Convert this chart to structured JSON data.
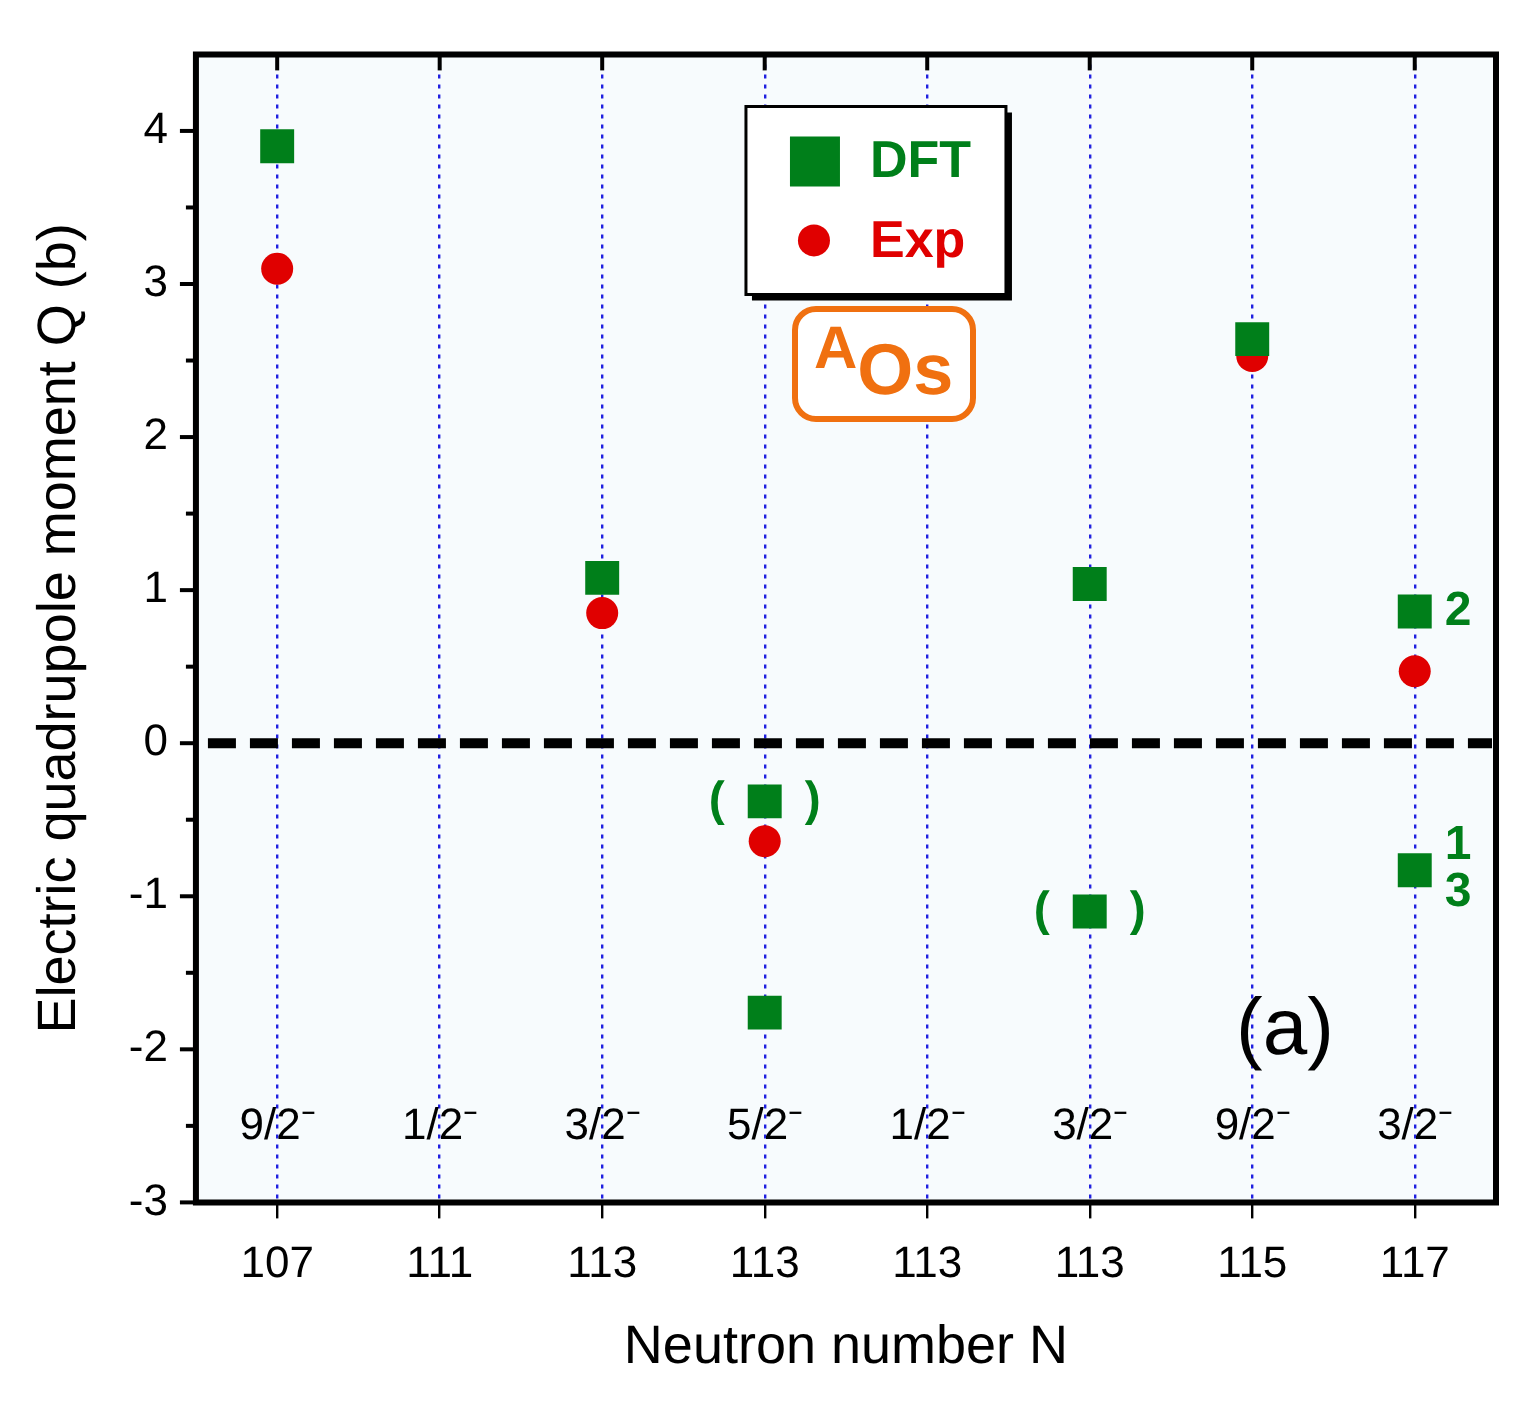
{
  "chart_data": {
    "type": "scatter",
    "xlabel": "Neutron number N",
    "ylabel": "Electric quadrupole moment Q (b)",
    "categories": [
      "107",
      "111",
      "113",
      "113",
      "113",
      "113",
      "115",
      "117"
    ],
    "series": [
      {
        "name": "DFT",
        "marker": "square",
        "color": "#007f1a",
        "values": [
          3.9,
          null,
          1.08,
          -0.38,
          null,
          1.04,
          2.64,
          0.86
        ]
      },
      {
        "marker": "square",
        "color": "#007f1a",
        "values": [
          null,
          null,
          null,
          -1.76,
          null,
          -1.1,
          null,
          -0.83
        ]
      },
      {
        "name": "Exp",
        "marker": "circle",
        "color": "#e00000",
        "values": [
          3.1,
          null,
          0.85,
          -0.64,
          null,
          null,
          2.53,
          0.47
        ]
      }
    ],
    "ylim": [
      -3,
      4.5
    ],
    "yticks": [
      -3,
      {
        "value": -2.5,
        "label": null
      },
      -2,
      {
        "value": -1.5,
        "label": null
      },
      -1,
      {
        "value": -0.5,
        "label": null
      },
      0,
      {
        "value": 0.5,
        "label": null
      },
      1,
      {
        "value": 1.5,
        "label": null
      },
      2,
      {
        "value": 2.5,
        "label": null
      },
      3,
      {
        "value": 3.5,
        "label": null
      },
      4
    ],
    "grid": "x",
    "legend": "top",
    "ref_lines": [
      {
        "axis": "y",
        "value": 0,
        "color": "#000000",
        "line_style": "dashed"
      }
    ],
    "annotations": [
      "9/2⁻",
      "1/2⁻",
      "3/2⁻",
      "5/2⁻",
      "1/2⁻",
      "3/2⁻",
      "9/2⁻",
      "3/2⁻",
      "(      )",
      "(      )",
      {
        "text": "2",
        "x": "117",
        "y": 0.86
      },
      {
        "text": "1",
        "x": "117",
        "y": -0.67
      },
      {
        "text": "3",
        "x": "117",
        "y": -0.98
      },
      "(a)",
      "$^{A}$Os"
    ]
  }
}
